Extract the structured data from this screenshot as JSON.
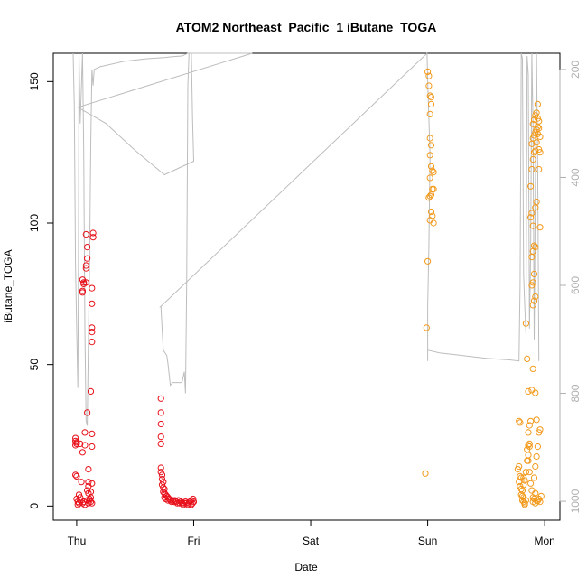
{
  "chart_data": {
    "type": "scatter",
    "title": "ATOM2 Northeast_Pacific_1 iButane_TOGA",
    "xlabel": "Date",
    "ylabel": "iButane_TOGA",
    "x_ticks": [
      "Thu",
      "Fri",
      "Sat",
      "Sun",
      "Mon"
    ],
    "x_range_days": [
      -0.2,
      4.13
    ],
    "y_ticks": [
      0,
      50,
      100,
      150
    ],
    "ylim": [
      -5,
      160
    ],
    "right_axis": {
      "ticks": [
        200,
        400,
        600,
        800,
        1000
      ],
      "range": [
        1035,
        170
      ],
      "orientation": "reversed",
      "color": "#b0b0b0"
    },
    "grid": false,
    "colors": {
      "red": "#e8101a",
      "orange": "#f29a1b",
      "gray_line": "#bdbdbd",
      "right_axis": "#b0b0b0"
    },
    "series": [
      {
        "color": "red",
        "points": [
          [
            -0.01,
            24
          ],
          [
            -0.01,
            23
          ],
          [
            0.0,
            22
          ],
          [
            0.0,
            22.5
          ],
          [
            -0.01,
            21.5
          ],
          [
            0.03,
            22
          ],
          [
            -0.01,
            11
          ],
          [
            0.0,
            10.5
          ],
          [
            0.02,
            4
          ],
          [
            0.0,
            2.5
          ],
          [
            0.01,
            1.5
          ],
          [
            0.02,
            1
          ],
          [
            0.01,
            0.5
          ],
          [
            0.03,
            2
          ],
          [
            0.05,
            80
          ],
          [
            0.05,
            76
          ],
          [
            0.06,
            79
          ],
          [
            0.05,
            75.5
          ],
          [
            0.06,
            78.5
          ],
          [
            0.08,
            79
          ],
          [
            0.07,
            21.5
          ],
          [
            0.05,
            19
          ],
          [
            0.04,
            8.5
          ],
          [
            0.03,
            3
          ],
          [
            0.05,
            1
          ],
          [
            0.06,
            1.5
          ],
          [
            0.07,
            0.5
          ],
          [
            0.08,
            84
          ],
          [
            0.08,
            85
          ],
          [
            0.09,
            87.5
          ],
          [
            0.09,
            91.5
          ],
          [
            0.08,
            96
          ],
          [
            0.07,
            26
          ],
          [
            0.09,
            33
          ],
          [
            0.1,
            13
          ],
          [
            0.1,
            8.5
          ],
          [
            0.1,
            7
          ],
          [
            0.09,
            5.5
          ],
          [
            0.1,
            4.5
          ],
          [
            0.09,
            2
          ],
          [
            0.1,
            1
          ],
          [
            0.11,
            2
          ],
          [
            0.12,
            1.5
          ],
          [
            0.13,
            1
          ],
          [
            0.12,
            3
          ],
          [
            0.13,
            8
          ],
          [
            0.13,
            25.5
          ],
          [
            0.13,
            21
          ],
          [
            0.12,
            40.5
          ],
          [
            0.13,
            58
          ],
          [
            0.13,
            61.5
          ],
          [
            0.13,
            63
          ],
          [
            0.13,
            71.5
          ],
          [
            0.13,
            77
          ],
          [
            0.14,
            95
          ],
          [
            0.14,
            96.5
          ],
          [
            0.12,
            5
          ],
          [
            0.11,
            2.5
          ],
          [
            0.72,
            38
          ],
          [
            0.72,
            33
          ],
          [
            0.72,
            29
          ],
          [
            0.72,
            24.5
          ],
          [
            0.72,
            22
          ],
          [
            0.72,
            13.5
          ],
          [
            0.72,
            12
          ],
          [
            0.73,
            11
          ],
          [
            0.73,
            9.5
          ],
          [
            0.74,
            8.5
          ],
          [
            0.73,
            7.5
          ],
          [
            0.74,
            6.5
          ],
          [
            0.75,
            6
          ],
          [
            0.74,
            5
          ],
          [
            0.75,
            4.5
          ],
          [
            0.76,
            4
          ],
          [
            0.77,
            3.5
          ],
          [
            0.78,
            3
          ],
          [
            0.75,
            3
          ],
          [
            0.76,
            2.5
          ],
          [
            0.78,
            2
          ],
          [
            0.79,
            2.5
          ],
          [
            0.8,
            2
          ],
          [
            0.81,
            1.5
          ],
          [
            0.82,
            2
          ],
          [
            0.83,
            1.5
          ],
          [
            0.84,
            2
          ],
          [
            0.85,
            1.5
          ],
          [
            0.86,
            1
          ],
          [
            0.87,
            2
          ],
          [
            0.88,
            1
          ],
          [
            0.89,
            1.5
          ],
          [
            0.9,
            1
          ],
          [
            0.91,
            0.5
          ],
          [
            0.92,
            1
          ],
          [
            0.93,
            1.5
          ],
          [
            0.94,
            1
          ],
          [
            0.95,
            0.5
          ],
          [
            0.96,
            1
          ],
          [
            0.97,
            1.5
          ],
          [
            0.98,
            2
          ],
          [
            0.99,
            1
          ],
          [
            1.0,
            1.5
          ],
          [
            0.995,
            2.5
          ],
          [
            0.98,
            0.5
          ]
        ]
      },
      {
        "color": "orange",
        "points": [
          [
            2.98,
            11.5
          ],
          [
            3.0,
            153.5
          ],
          [
            3.01,
            152
          ],
          [
            3.01,
            148.5
          ],
          [
            3.02,
            145
          ],
          [
            3.03,
            144.5
          ],
          [
            3.03,
            142
          ],
          [
            3.02,
            138.5
          ],
          [
            3.02,
            130
          ],
          [
            3.03,
            127.5
          ],
          [
            3.02,
            124
          ],
          [
            3.03,
            120
          ],
          [
            3.04,
            118.5
          ],
          [
            3.05,
            118
          ],
          [
            3.02,
            116
          ],
          [
            3.04,
            112
          ],
          [
            3.05,
            112
          ],
          [
            3.03,
            110
          ],
          [
            3.02,
            109.5
          ],
          [
            3.01,
            109
          ],
          [
            3.03,
            104
          ],
          [
            3.04,
            102.5
          ],
          [
            3.02,
            101
          ],
          [
            3.05,
            100
          ],
          [
            3.0,
            86.5
          ],
          [
            2.99,
            63
          ],
          [
            3.78,
            30
          ],
          [
            3.79,
            29.5
          ],
          [
            3.78,
            14
          ],
          [
            3.77,
            13
          ],
          [
            3.79,
            10.5
          ],
          [
            3.8,
            10
          ],
          [
            3.78,
            8.5
          ],
          [
            3.79,
            7
          ],
          [
            3.8,
            6
          ],
          [
            3.81,
            5.5
          ],
          [
            3.8,
            4
          ],
          [
            3.82,
            3
          ],
          [
            3.81,
            2
          ],
          [
            3.82,
            1.5
          ],
          [
            3.83,
            1
          ],
          [
            3.84,
            2
          ],
          [
            3.83,
            0.5
          ],
          [
            3.81,
            3.5
          ],
          [
            3.82,
            7.5
          ],
          [
            3.83,
            9
          ],
          [
            3.82,
            10
          ],
          [
            3.84,
            12
          ],
          [
            3.85,
            16
          ],
          [
            3.86,
            18
          ],
          [
            3.85,
            20
          ],
          [
            3.86,
            21.5
          ],
          [
            3.87,
            22
          ],
          [
            3.86,
            26
          ],
          [
            3.87,
            28.5
          ],
          [
            3.88,
            30
          ],
          [
            3.87,
            21
          ],
          [
            3.86,
            16
          ],
          [
            3.87,
            12
          ],
          [
            3.88,
            8
          ],
          [
            3.89,
            5.5
          ],
          [
            3.9,
            3
          ],
          [
            3.91,
            2.5
          ],
          [
            3.9,
            1.5
          ],
          [
            3.92,
            1
          ],
          [
            3.93,
            2
          ],
          [
            3.92,
            4.5
          ],
          [
            3.91,
            10
          ],
          [
            3.92,
            14
          ],
          [
            3.93,
            17.5
          ],
          [
            3.94,
            21
          ],
          [
            3.95,
            26
          ],
          [
            3.96,
            27
          ],
          [
            3.93,
            30.5
          ],
          [
            3.92,
            40
          ],
          [
            3.89,
            41
          ],
          [
            3.86,
            40.5
          ],
          [
            3.9,
            48.5
          ],
          [
            3.85,
            52
          ],
          [
            3.84,
            64.5
          ],
          [
            3.9,
            71
          ],
          [
            3.91,
            72.5
          ],
          [
            3.92,
            74
          ],
          [
            3.89,
            78
          ],
          [
            3.9,
            79
          ],
          [
            3.91,
            82
          ],
          [
            3.89,
            88
          ],
          [
            3.9,
            90
          ],
          [
            3.91,
            92
          ],
          [
            3.92,
            91.5
          ],
          [
            3.96,
            98.5
          ],
          [
            3.9,
            99
          ],
          [
            3.88,
            102
          ],
          [
            3.89,
            103.5
          ],
          [
            3.92,
            105.5
          ],
          [
            3.93,
            107.5
          ],
          [
            3.88,
            113
          ],
          [
            3.89,
            119
          ],
          [
            3.95,
            119
          ],
          [
            3.9,
            122.5
          ],
          [
            3.91,
            125
          ],
          [
            3.92,
            125.5
          ],
          [
            3.95,
            126
          ],
          [
            3.96,
            125
          ],
          [
            3.89,
            128
          ],
          [
            3.9,
            130
          ],
          [
            3.91,
            131
          ],
          [
            3.92,
            132
          ],
          [
            3.93,
            133
          ],
          [
            3.94,
            134
          ],
          [
            3.95,
            133.5
          ],
          [
            3.9,
            135
          ],
          [
            3.91,
            136.5
          ],
          [
            3.92,
            138
          ],
          [
            3.93,
            139
          ],
          [
            3.94,
            137
          ],
          [
            3.95,
            136
          ],
          [
            3.94,
            142
          ],
          [
            3.93,
            128.5
          ],
          [
            3.94,
            131.5
          ],
          [
            3.96,
            130.5
          ],
          [
            3.95,
            2.5
          ],
          [
            3.96,
            1.5
          ],
          [
            3.94,
            1.8
          ],
          [
            3.97,
            3.5
          ]
        ]
      }
    ],
    "altitude_line": {
      "color": "gray_line",
      "points_right_axis": [
        [
          -0.03,
          170
        ],
        [
          -0.02,
          270
        ],
        [
          -0.01,
          560
        ],
        [
          0.0,
          680
        ],
        [
          0.01,
          790
        ],
        [
          0.015,
          555
        ],
        [
          0.02,
          170
        ],
        [
          0.03,
          300
        ],
        [
          0.05,
          170
        ],
        [
          0.06,
          350
        ],
        [
          0.07,
          680
        ],
        [
          0.08,
          850
        ],
        [
          0.09,
          860
        ],
        [
          0.1,
          700
        ],
        [
          0.11,
          560
        ],
        [
          0.12,
          340
        ],
        [
          0.13,
          200
        ],
        [
          0.14,
          230
        ],
        [
          0.15,
          200
        ],
        [
          0.2,
          195
        ],
        [
          0.4,
          185
        ],
        [
          0.6,
          180
        ],
        [
          0.75,
          178
        ],
        [
          0.83,
          176
        ],
        [
          0.9,
          175
        ],
        [
          0.93,
          172
        ],
        [
          0.95,
          170
        ],
        [
          1.2,
          165
        ],
        [
          1.5,
          162
        ],
        [
          0.01,
          270
        ],
        [
          0.25,
          300
        ],
        [
          0.5,
          350
        ],
        [
          0.75,
          395
        ],
        [
          1.0,
          370
        ],
        [
          0.99,
          290
        ],
        [
          0.98,
          170
        ],
        [
          0.97,
          165
        ],
        [
          0.96,
          170
        ],
        [
          0.95,
          230
        ],
        [
          0.94,
          600
        ],
        [
          0.93,
          800
        ],
        [
          0.92,
          760
        ],
        [
          0.9,
          780
        ],
        [
          0.85,
          780
        ],
        [
          0.82,
          780
        ],
        [
          0.8,
          785
        ],
        [
          0.78,
          745
        ],
        [
          0.77,
          730
        ],
        [
          0.74,
          720
        ],
        [
          0.73,
          680
        ],
        [
          0.72,
          640
        ],
        [
          0.715,
          640
        ],
        [
          2.995,
          170
        ],
        [
          3.0,
          220
        ],
        [
          3.02,
          360
        ],
        [
          3.01,
          530
        ],
        [
          3.0,
          640
        ],
        [
          3.0,
          740
        ],
        [
          3.0,
          720
        ],
        [
          3.1,
          725
        ],
        [
          3.3,
          730
        ],
        [
          3.5,
          735
        ],
        [
          3.7,
          738
        ],
        [
          3.78,
          740
        ],
        [
          3.79,
          600
        ],
        [
          3.8,
          170
        ],
        [
          3.81,
          180
        ],
        [
          3.82,
          580
        ],
        [
          3.83,
          640
        ],
        [
          3.84,
          690
        ],
        [
          3.85,
          175
        ],
        [
          3.86,
          210
        ],
        [
          3.87,
          680
        ],
        [
          3.88,
          540
        ],
        [
          3.89,
          170
        ],
        [
          3.9,
          300
        ],
        [
          3.91,
          700
        ],
        [
          3.92,
          420
        ],
        [
          3.93,
          170
        ],
        [
          3.94,
          380
        ],
        [
          3.95,
          740
        ]
      ]
    }
  }
}
